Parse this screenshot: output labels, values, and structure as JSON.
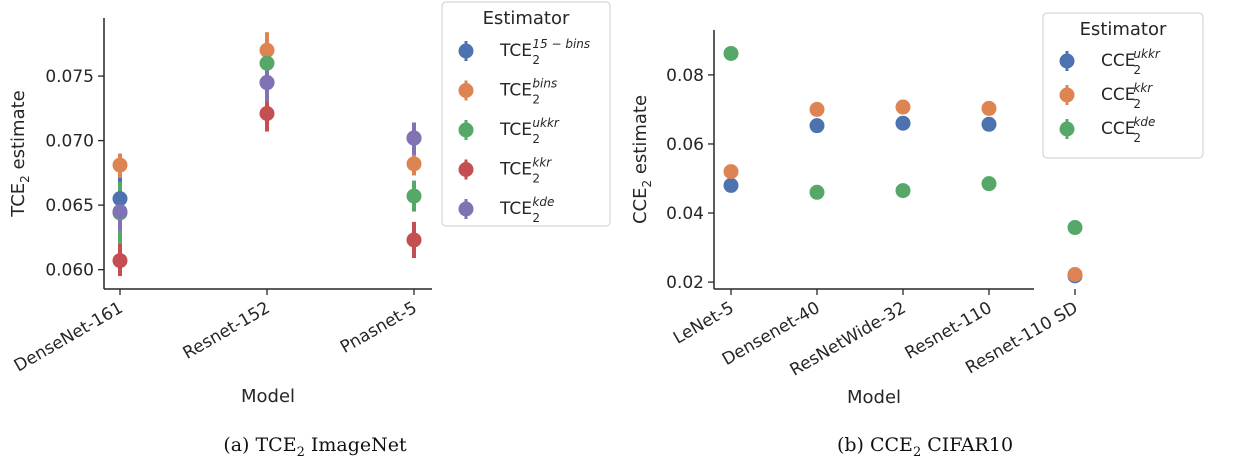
{
  "colors": {
    "blue": "#4c72b0",
    "orange": "#dd8452",
    "green": "#55a868",
    "red": "#c44e52",
    "purple": "#8172b3",
    "axis": "#262626",
    "legend_border": "#cccccc"
  },
  "captions": [
    {
      "prefix": "(a) TCE",
      "sub": "2",
      "suffix": " ImageNet"
    },
    {
      "prefix": "(b) CCE",
      "sub": "2",
      "suffix": " CIFAR10"
    }
  ],
  "chart_data": [
    {
      "type": "scatter",
      "title": "",
      "xlabel": "Model",
      "ylabel_prefix": "TCE",
      "ylabel_sub": "2",
      "ylabel_suffix": " estimate",
      "categories": [
        "DenseNet-161",
        "Resnet-152",
        "Pnasnet-5"
      ],
      "ylim": [
        0.0585,
        0.0795
      ],
      "yticks": [
        0.06,
        0.065,
        0.07,
        0.075
      ],
      "ytick_labels": [
        "0.060",
        "0.065",
        "0.070",
        "0.075"
      ],
      "grid": false,
      "legend": {
        "title": "Estimator",
        "placement": "outside-right",
        "entries": [
          {
            "base": "TCE",
            "sub": "2",
            "sup": "15 − bins",
            "color": "blue"
          },
          {
            "base": "TCE",
            "sub": "2",
            "sup": "bins",
            "color": "orange"
          },
          {
            "base": "TCE",
            "sub": "2",
            "sup": "ukkr",
            "color": "green"
          },
          {
            "base": "TCE",
            "sub": "2",
            "sup": "kkr",
            "color": "red"
          },
          {
            "base": "TCE",
            "sub": "2",
            "sup": "kde",
            "color": "purple"
          }
        ]
      },
      "series": [
        {
          "color": "blue",
          "values": [
            0.0655,
            0.0745,
            0.0702
          ],
          "errors": [
            [
              0.0633,
              0.0672
            ],
            [
              0.0725,
              0.0762
            ],
            [
              0.0688,
              0.0714
            ]
          ]
        },
        {
          "color": "orange",
          "values": [
            0.0681,
            0.077,
            0.0682
          ],
          "errors": [
            [
              0.0671,
              0.069
            ],
            [
              0.0755,
              0.0784
            ],
            [
              0.0673,
              0.0691
            ]
          ]
        },
        {
          "color": "green",
          "values": [
            0.0644,
            0.076,
            0.0657
          ],
          "errors": [
            [
              0.062,
              0.0668
            ],
            [
              0.0745,
              0.0775
            ],
            [
              0.0645,
              0.0669
            ]
          ]
        },
        {
          "color": "red",
          "values": [
            0.0607,
            0.0721,
            0.0623
          ],
          "errors": [
            [
              0.0595,
              0.062
            ],
            [
              0.0707,
              0.0733
            ],
            [
              0.0609,
              0.0637
            ]
          ]
        },
        {
          "color": "purple",
          "values": [
            0.0645,
            0.0745,
            0.0702
          ],
          "errors": [
            [
              0.063,
              0.0658
            ],
            [
              0.073,
              0.076
            ],
            [
              0.0689,
              0.0714
            ]
          ]
        }
      ]
    },
    {
      "type": "scatter",
      "title": "",
      "xlabel": "Model",
      "ylabel_prefix": "CCE",
      "ylabel_sub": "2",
      "ylabel_suffix": " estimate",
      "categories": [
        "LeNet-5",
        "Densenet-40",
        "ResNetWide-32",
        "Resnet-110",
        "Resnet-110 SD"
      ],
      "ylim": [
        0.018,
        0.093
      ],
      "yticks": [
        0.02,
        0.04,
        0.06,
        0.08
      ],
      "ytick_labels": [
        "0.02",
        "0.04",
        "0.06",
        "0.08"
      ],
      "grid": false,
      "legend": {
        "title": "Estimator",
        "placement": "outside-right",
        "entries": [
          {
            "base": "CCE",
            "sub": "2",
            "sup": "ukkr",
            "color": "blue"
          },
          {
            "base": "CCE",
            "sub": "2",
            "sup": "kkr",
            "color": "orange"
          },
          {
            "base": "CCE",
            "sub": "2",
            "sup": "kde",
            "color": "green"
          }
        ]
      },
      "series": [
        {
          "color": "blue",
          "values": [
            0.048,
            0.0653,
            0.066,
            0.0657,
            0.0218
          ]
        },
        {
          "color": "orange",
          "values": [
            0.052,
            0.07,
            0.0707,
            0.0703,
            0.0222
          ]
        },
        {
          "color": "green",
          "values": [
            0.0862,
            0.046,
            0.0465,
            0.0485,
            0.0358
          ]
        }
      ]
    }
  ]
}
